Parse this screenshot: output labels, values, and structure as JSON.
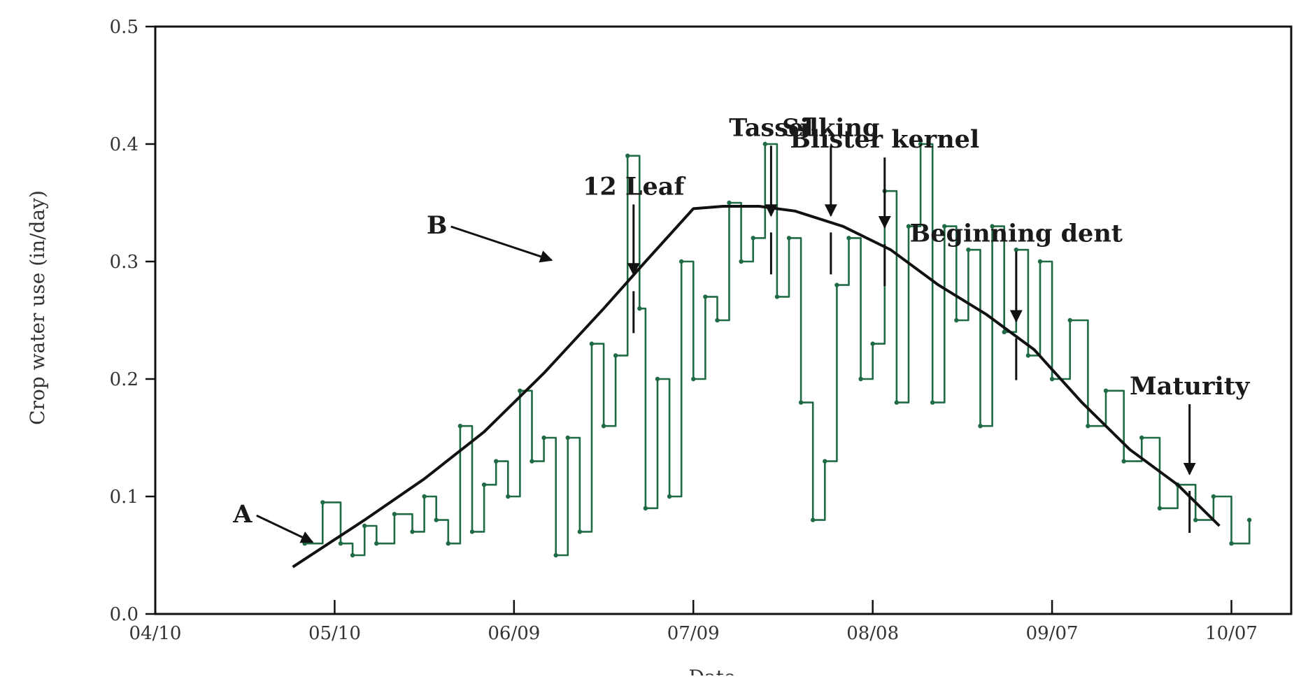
{
  "chart_data": {
    "type": "line",
    "xlabel": "Date",
    "ylabel": "Crop water use (in/day)",
    "x_tick_labels": [
      "04/10",
      "05/10",
      "06/09",
      "07/09",
      "08/08",
      "09/07",
      "10/07"
    ],
    "y_tick_labels": [
      "0.0",
      "0.1",
      "0.2",
      "0.3",
      "0.4",
      "0.5"
    ],
    "ylim": [
      0,
      0.5
    ],
    "xlim": [
      "04/10",
      "10/17"
    ],
    "grid": false,
    "colors": {
      "daily": "#1f6b45",
      "average": "#111111"
    },
    "series": [
      {
        "key": "daily",
        "x": [
          "05/05",
          "05/08",
          "05/11",
          "05/13",
          "05/15",
          "05/17",
          "05/20",
          "05/23",
          "05/25",
          "05/27",
          "05/29",
          "05/31",
          "06/02",
          "06/04",
          "06/06",
          "06/08",
          "06/10",
          "06/12",
          "06/14",
          "06/16",
          "06/18",
          "06/20",
          "06/22",
          "06/24",
          "06/26",
          "06/28",
          "06/30",
          "07/01",
          "07/03",
          "07/05",
          "07/07",
          "07/09",
          "07/11",
          "07/13",
          "07/15",
          "07/17",
          "07/19",
          "07/21",
          "07/23",
          "07/25",
          "07/27",
          "07/29",
          "07/31",
          "08/02",
          "08/04",
          "08/06",
          "08/08",
          "08/10",
          "08/12",
          "08/14",
          "08/16",
          "08/18",
          "08/20",
          "08/22",
          "08/24",
          "08/26",
          "08/28",
          "08/30",
          "09/01",
          "09/03",
          "09/05",
          "09/07",
          "09/10",
          "09/13",
          "09/16",
          "09/19",
          "09/22",
          "09/25",
          "09/28",
          "10/01",
          "10/04",
          "10/07",
          "10/10"
        ],
        "y": [
          0.06,
          0.095,
          0.06,
          0.05,
          0.075,
          0.06,
          0.085,
          0.07,
          0.1,
          0.08,
          0.06,
          0.16,
          0.07,
          0.11,
          0.13,
          0.1,
          0.19,
          0.13,
          0.15,
          0.05,
          0.15,
          0.07,
          0.23,
          0.16,
          0.22,
          0.39,
          0.26,
          0.09,
          0.2,
          0.1,
          0.3,
          0.2,
          0.27,
          0.25,
          0.35,
          0.3,
          0.32,
          0.4,
          0.27,
          0.32,
          0.18,
          0.08,
          0.13,
          0.28,
          0.32,
          0.2,
          0.23,
          0.36,
          0.18,
          0.33,
          0.4,
          0.18,
          0.33,
          0.25,
          0.31,
          0.16,
          0.33,
          0.24,
          0.31,
          0.22,
          0.3,
          0.2,
          0.25,
          0.16,
          0.19,
          0.13,
          0.15,
          0.09,
          0.11,
          0.08,
          0.1,
          0.06,
          0.08
        ]
      },
      {
        "key": "average",
        "x": [
          "05/03",
          "05/15",
          "05/25",
          "06/04",
          "06/14",
          "06/24",
          "07/01",
          "07/09",
          "07/14",
          "07/20",
          "07/26",
          "08/03",
          "08/11",
          "08/19",
          "08/27",
          "09/04",
          "09/12",
          "09/20",
          "09/28",
          "10/05"
        ],
        "y": [
          0.04,
          0.08,
          0.115,
          0.155,
          0.205,
          0.26,
          0.3,
          0.345,
          0.347,
          0.347,
          0.343,
          0.33,
          0.31,
          0.28,
          0.255,
          0.225,
          0.18,
          0.14,
          0.11,
          0.075
        ]
      }
    ],
    "annotations": [
      {
        "label": "A",
        "date": "05/07",
        "value": 0.06
      },
      {
        "label": "B",
        "date": "06/16",
        "value": 0.3
      },
      {
        "label": "12 Leaf",
        "date": "06/29",
        "value": 0.27
      },
      {
        "label": "Tassel",
        "date": "07/22",
        "value": 0.32
      },
      {
        "label": "Silking",
        "date": "08/01",
        "value": 0.32
      },
      {
        "label": "Blister kernel",
        "date": "08/10",
        "value": 0.31
      },
      {
        "label": "Beginning dent",
        "date": "09/01",
        "value": 0.23
      },
      {
        "label": "Maturity",
        "date": "09/30",
        "value": 0.1
      }
    ]
  }
}
